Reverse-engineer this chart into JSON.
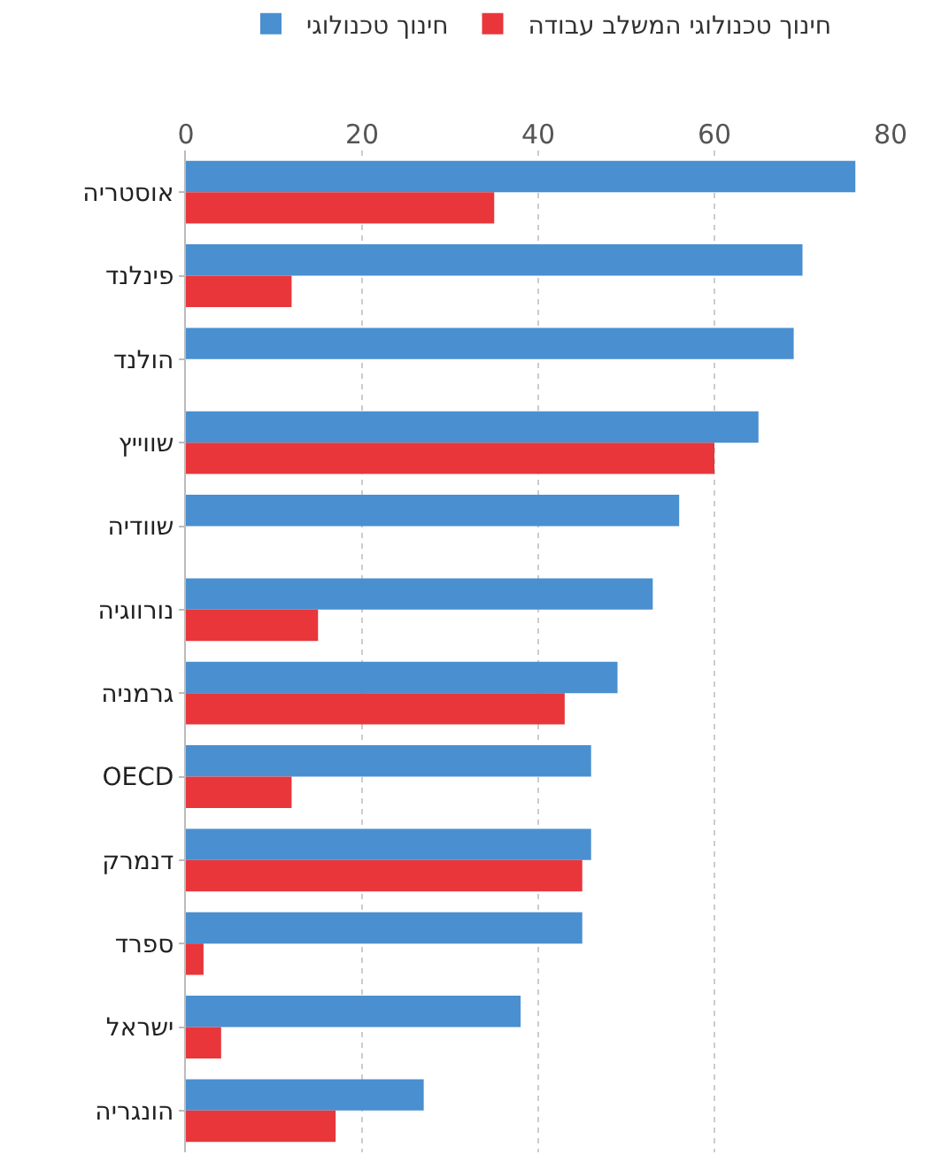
{
  "chart_data": {
    "type": "bar",
    "orientation": "horizontal",
    "categories": [
      "אוסטריה",
      "פינלנד",
      "הולנד",
      "שווייץ",
      "שוודיה",
      "נורווגיה",
      "גרמניה",
      "OECD",
      "דנמרק",
      "ספרד",
      "ישראל",
      "הונגריה"
    ],
    "series": [
      {
        "name": "חינוך טכנולוגי",
        "color": "#4a8fd0",
        "values": [
          76,
          70,
          69,
          65,
          56,
          53,
          49,
          46,
          46,
          45,
          38,
          27
        ]
      },
      {
        "name": "חינוך טכנולוגי המשלב עבודה",
        "color": "#e8363b",
        "values": [
          35,
          12,
          null,
          60,
          null,
          15,
          43,
          12,
          45,
          2,
          4,
          17
        ]
      }
    ],
    "xlim": [
      0,
      80
    ],
    "xticks": [
      0,
      20,
      40,
      60,
      80
    ],
    "grid": "x",
    "legend": "top"
  }
}
